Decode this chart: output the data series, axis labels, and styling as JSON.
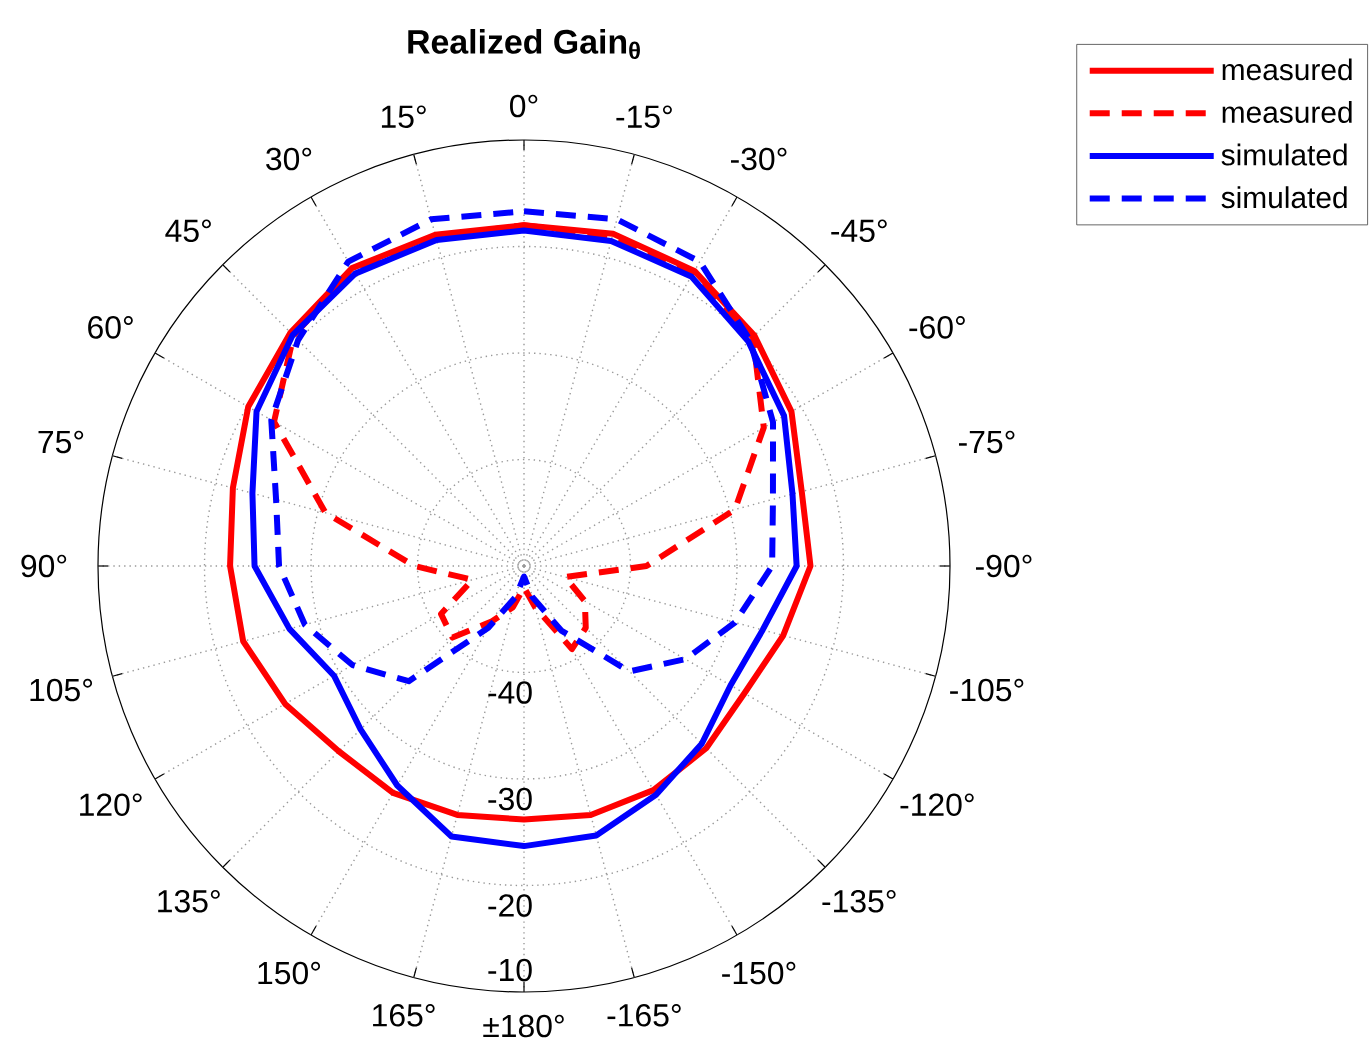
{
  "chart_data": {
    "type": "radar",
    "title": "Realized Gain$_{θ}$",
    "categories": [
      "0°",
      "-15°",
      "-30°",
      "-45°",
      "-60°",
      "-75°",
      "-90°",
      "-105°",
      "-120°",
      "-135°",
      "-150°",
      "-165°",
      "±180°",
      "165°",
      "150°",
      "135°",
      "120°",
      "105°",
      "90°",
      "75°",
      "60°",
      "45°",
      "30°",
      "15°"
    ],
    "ylim": [
      -50,
      -10
    ],
    "yticks": [
      -40,
      -30,
      -20,
      -10
    ],
    "grid": true,
    "legend": "top right",
    "series": [
      {
        "name": "measured",
        "color": "#ff0000",
        "line_style": "solid",
        "values": [
          -18,
          -17.7,
          -18,
          -19.4,
          -21,
          -23,
          -23.1,
          -24.8,
          -26.1,
          -25.8,
          -25.7,
          -25.8,
          -26.2,
          -25.8,
          -25.4,
          -25.4,
          -24.1,
          -22.7,
          -22.4,
          -21.7,
          -20.1,
          -19,
          -17.7,
          -17.8
        ]
      },
      {
        "name": "measured",
        "color": "#ff0000",
        "line_style": "dashed",
        "values": [
          -18,
          -18,
          -18.3,
          -19.6,
          -24,
          -29.5,
          -38.5,
          -46,
          -43.4,
          -41.8,
          -41,
          -46,
          -48,
          -46,
          -44,
          -40.5,
          -41,
          -45,
          -39.7,
          -30.7,
          -22.9,
          -19.4,
          -18,
          -18
        ]
      },
      {
        "name": "simulated",
        "color": "#0000ff",
        "line_style": "solid",
        "values": [
          -18.5,
          -18.4,
          -18.6,
          -20.2,
          -21.8,
          -23.9,
          -24.4,
          -26.8,
          -27.6,
          -26.4,
          -25.2,
          -23.8,
          -23.7,
          -23.7,
          -26.2,
          -28.3,
          -29.4,
          -27.2,
          -24.7,
          -23.6,
          -21,
          -19.3,
          -18.3,
          -18.3
        ]
      },
      {
        "name": "simulated",
        "color": "#0000ff",
        "line_style": "dashed",
        "values": [
          -16.7,
          -16.3,
          -17,
          -20,
          -23,
          -25.8,
          -26.7,
          -29.5,
          -32.5,
          -36,
          -43,
          -47,
          -49,
          -47,
          -43.3,
          -34.7,
          -31.4,
          -28.7,
          -27,
          -25.9,
          -22.6,
          -20,
          -17,
          -16.3
        ]
      }
    ]
  }
}
